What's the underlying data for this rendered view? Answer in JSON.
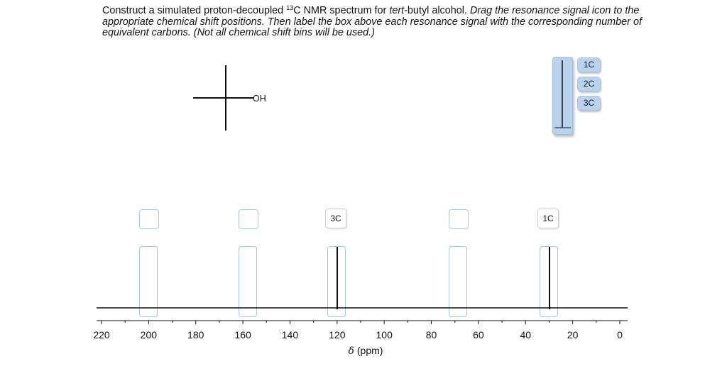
{
  "instructions": {
    "part1": "Construct a simulated proton-decoupled ",
    "superscript": "13",
    "part2": "C NMR spectrum for ",
    "part3_italic": "tert",
    "part4": "-butyl alcohol. ",
    "part5_italic": "Drag the resonance signal icon to the appropriate chemical shift positions. Then label the box above each resonance signal with the corresponding number of equivalent carbons. (Not all chemical shift bins will be used.)"
  },
  "molecule": {
    "substituent_label": "OH"
  },
  "tray": {
    "chips": [
      "1C",
      "2C",
      "3C"
    ]
  },
  "bins": [
    {
      "shift_ppm": 200,
      "label": "",
      "has_signal": false
    },
    {
      "shift_ppm": 160,
      "label": "",
      "has_signal": false
    },
    {
      "shift_ppm": 120,
      "label": "3C",
      "has_signal": true
    },
    {
      "shift_ppm": 65,
      "label": "",
      "has_signal": false
    },
    {
      "shift_ppm": 31,
      "label": "1C",
      "has_signal": true
    }
  ],
  "axis": {
    "tick_labels": [
      "220",
      "200",
      "180",
      "160",
      "140",
      "120",
      "100",
      "80",
      "60",
      "40",
      "20",
      "0"
    ],
    "delta_symbol": "δ",
    "unit": " (ppm)"
  }
}
